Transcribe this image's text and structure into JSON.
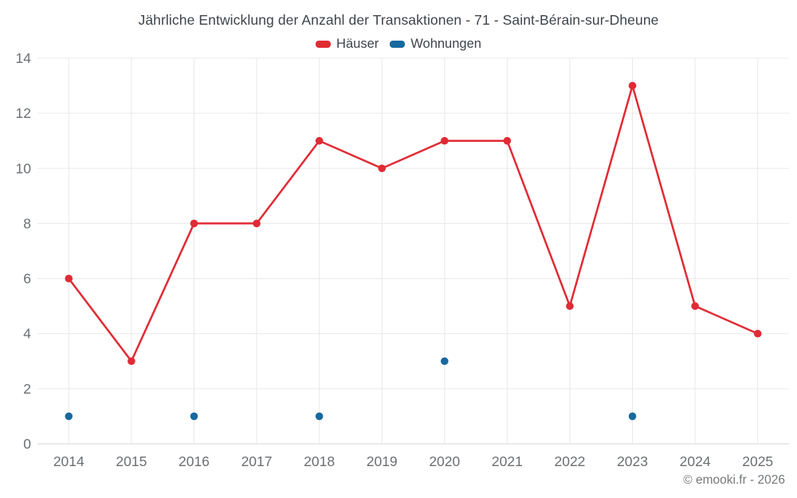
{
  "footer": {
    "credit": "© emooki.fr - 2026"
  },
  "chart_data": {
    "type": "line",
    "title": "Jährliche Entwicklung der Anzahl der Transaktionen - 71 - Saint-Bérain-sur-Dheune",
    "categories": [
      "2014",
      "2015",
      "2016",
      "2017",
      "2018",
      "2019",
      "2020",
      "2021",
      "2022",
      "2023",
      "2024",
      "2025"
    ],
    "series": [
      {
        "name": "Häuser",
        "type": "line",
        "color": "#e02b35",
        "marker_radius": 4.8,
        "line_width": 2.5,
        "values": [
          6,
          3,
          8,
          8,
          11,
          10,
          11,
          11,
          5,
          13,
          5,
          4
        ]
      },
      {
        "name": "Wohnungen",
        "type": "scatter",
        "color": "#17699f",
        "marker_radius": 4.8,
        "values": [
          1,
          null,
          1,
          null,
          1,
          null,
          3,
          null,
          null,
          1,
          null,
          null
        ]
      }
    ],
    "xlabel": "",
    "ylabel": "",
    "ylim": [
      0,
      14
    ],
    "ytick_step": 2,
    "grid": true,
    "legend_position": "top",
    "grid_color": "#e9e9e9",
    "axis_line_color": "#d4d4d4",
    "tick_label_color": "#6b6f73"
  }
}
